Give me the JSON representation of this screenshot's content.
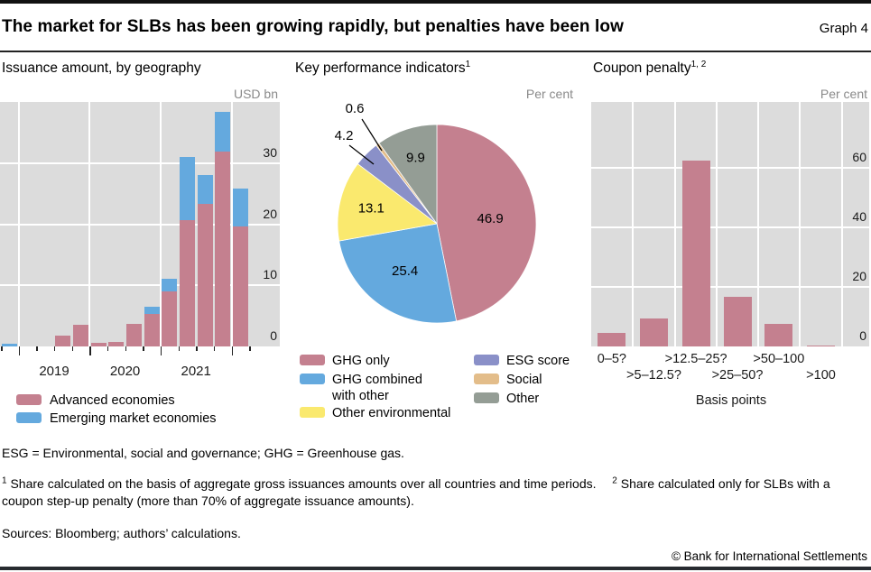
{
  "header": {
    "title": "The market for SLBs has been growing rapidly, but penalties have been low",
    "graph_label": "Graph 4"
  },
  "colors": {
    "advanced_pink": "#c4808f",
    "emerging_blue": "#64a9de",
    "yellow": "#fae96e",
    "purple": "#8a90c8",
    "tan": "#e3bd8a",
    "gray": "#949d95",
    "panel_bg": "#dcdcdc",
    "gridline": "#ffffff",
    "unit_label_gray": "#8a8a8a",
    "bottom_bar": "#272b30"
  },
  "chart_data": [
    {
      "type": "bar",
      "stacked": true,
      "title": "Issuance amount, by geography",
      "ylabel": "USD bn",
      "ylim": [
        0,
        40
      ],
      "yticks": [
        0,
        10,
        20,
        30
      ],
      "grid": true,
      "legend_position": "below",
      "categories": [
        "2018-Q4",
        "2019-Q1",
        "2019-Q2",
        "2019-Q3",
        "2019-Q4",
        "2020-Q1",
        "2020-Q2",
        "2020-Q3",
        "2020-Q4",
        "2021-Q1",
        "2021-Q2",
        "2021-Q3",
        "2021-Q4",
        "2022-Q1"
      ],
      "x_axis_year_labels": [
        "2019",
        "2020",
        "2021"
      ],
      "series": [
        {
          "name": "Advanced economies",
          "color": "#c4808f",
          "values": [
            0,
            0,
            0,
            1.7,
            3.5,
            0.6,
            0.8,
            3.7,
            5.3,
            9.0,
            20.6,
            23.3,
            31.9,
            19.6
          ]
        },
        {
          "name": "Emerging market economies",
          "color": "#64a9de",
          "values": [
            0.5,
            0,
            0,
            0,
            0,
            0,
            0,
            0,
            1.2,
            2.0,
            10.4,
            4.7,
            6.5,
            6.2
          ]
        }
      ]
    },
    {
      "type": "pie",
      "title": "Key performance indicators",
      "title_footnote_marker": "1",
      "unit": "Per cent",
      "start_angle": "12 o'clock, clockwise",
      "slices": [
        {
          "label": "GHG only",
          "value": 46.9,
          "color": "#c4808f"
        },
        {
          "label": "GHG combined with other",
          "value": 25.4,
          "color": "#64a9de"
        },
        {
          "label": "Other environmental",
          "value": 13.1,
          "color": "#fae96e"
        },
        {
          "label": "ESG score",
          "value": 4.2,
          "color": "#8a90c8"
        },
        {
          "label": "Social",
          "value": 0.6,
          "color": "#e3bd8a"
        },
        {
          "label": "Other",
          "value": 9.9,
          "color": "#949d95"
        }
      ]
    },
    {
      "type": "bar",
      "stacked": false,
      "title": "Coupon penalty",
      "title_footnote_marker": "1, 2",
      "unit": "Per cent",
      "xlabel": "Basis points",
      "ylim": [
        0,
        82
      ],
      "yticks": [
        0,
        20,
        40,
        60
      ],
      "grid": true,
      "bar_color": "#c4808f",
      "categories": [
        "0–5?",
        ">5–12.5?",
        ">12.5–25?",
        ">25–50?",
        ">50–100",
        ">100"
      ],
      "values": [
        4.6,
        9.3,
        62.2,
        16.6,
        7.5,
        0.4
      ]
    }
  ],
  "footnotes": {
    "abbr": "ESG = Environmental, social and governance; GHG = Greenhouse gas.",
    "fn1_marker": "1",
    "fn1": "Share calculated on the basis of aggregate gross issuances amounts over all countries and time periods.",
    "fn2_marker": "2",
    "fn2": "Share calculated only for SLBs with a coupon step-up penalty (more than 70% of aggregate issuance amounts).",
    "sources": "Sources: Bloomberg; authors’ calculations.",
    "copyright": "© Bank for International Settlements"
  }
}
